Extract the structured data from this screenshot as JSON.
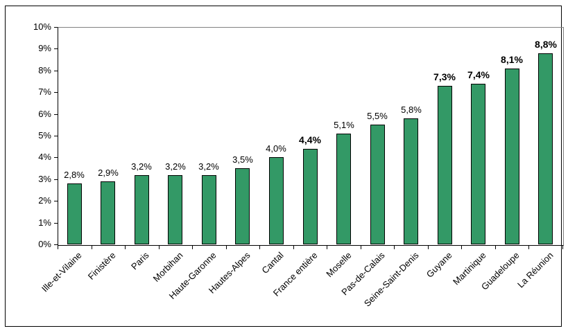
{
  "chart_data": {
    "type": "bar",
    "title": "",
    "xlabel": "",
    "ylabel": "",
    "ylim": [
      0,
      10
    ],
    "grid": false,
    "legend": "none",
    "y_ticks": [
      "0%",
      "1%",
      "2%",
      "3%",
      "4%",
      "5%",
      "6%",
      "7%",
      "8%",
      "9%",
      "10%"
    ],
    "categories": [
      "Ille-et-Vilaine",
      "Finistère",
      "Paris",
      "Morbihan",
      "Haute-Garonne",
      "Hautes-Alpes",
      "Cantal",
      "France entière",
      "Moselle",
      "Pas-de-Calais",
      "Seine-Saint-Denis",
      "Guyane",
      "Martinique",
      "Guadeloupe",
      "La Réunion"
    ],
    "values": [
      2.8,
      2.9,
      3.2,
      3.2,
      3.2,
      3.5,
      4.0,
      4.4,
      5.1,
      5.5,
      5.8,
      7.3,
      7.4,
      8.1,
      8.8
    ],
    "data_labels": [
      "2,8%",
      "2,9%",
      "3,2%",
      "3,2%",
      "3,2%",
      "3,5%",
      "4,0%",
      "4,4%",
      "5,1%",
      "5,5%",
      "5,8%",
      "7,3%",
      "7,4%",
      "8,1%",
      "8,8%"
    ],
    "bold_labels": [
      false,
      false,
      false,
      false,
      false,
      false,
      false,
      true,
      false,
      false,
      false,
      true,
      true,
      true,
      true
    ],
    "colors": {
      "bar_fill": "#339966",
      "bar_border": "#000000",
      "axis": "#000000",
      "plot_border": "#808080",
      "text": "#000000",
      "background": "#ffffff"
    }
  }
}
